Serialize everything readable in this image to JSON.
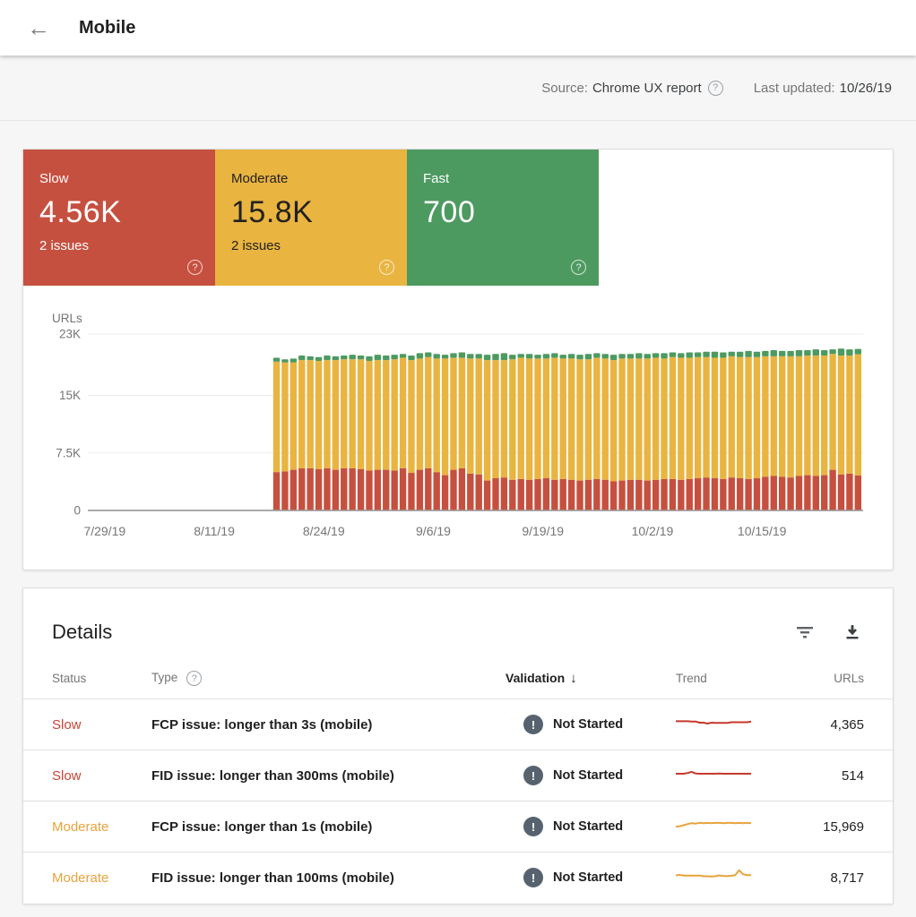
{
  "header": {
    "title": "Mobile"
  },
  "meta": {
    "source_label": "Source:",
    "source_value": "Chrome UX report",
    "updated_label": "Last updated:",
    "updated_value": "10/26/19"
  },
  "summary_cards": [
    {
      "label": "Slow",
      "value": "4.56K",
      "issues": "2 issues",
      "color": "#c6503f",
      "text_color": "#ffffff"
    },
    {
      "label": "Moderate",
      "value": "15.8K",
      "issues": "2 issues",
      "color": "#e9b440",
      "text_color": "#212121"
    },
    {
      "label": "Fast",
      "value": "700",
      "issues": "",
      "color": "#4d9a60",
      "text_color": "#ffffff"
    }
  ],
  "chart_data": {
    "type": "bar",
    "stacked": true,
    "ylabel": "URLs",
    "ylim": [
      0,
      23
    ],
    "y_unit": "K",
    "grid": true,
    "y_ticks": [
      {
        "value": 23,
        "label": "23K"
      },
      {
        "value": 15,
        "label": "15K"
      },
      {
        "value": 7.5,
        "label": "7.5K"
      },
      {
        "value": 0,
        "label": "0"
      }
    ],
    "x_ticks": [
      {
        "label": "7/29/19",
        "day": 2
      },
      {
        "label": "8/11/19",
        "day": 15
      },
      {
        "label": "8/24/19",
        "day": 28
      },
      {
        "label": "9/6/19",
        "day": 41
      },
      {
        "label": "9/19/19",
        "day": 54
      },
      {
        "label": "10/2/19",
        "day": 67
      },
      {
        "label": "10/15/19",
        "day": 80
      }
    ],
    "axis_days": 92,
    "bar_start_day": 22,
    "bar_start_date": "8/18/19",
    "bar_end_date": "10/26/19",
    "series": [
      {
        "name": "Slow",
        "color": "#c6503f",
        "values": [
          5.0,
          5.1,
          5.3,
          5.5,
          5.5,
          5.4,
          5.5,
          5.3,
          5.5,
          5.5,
          5.4,
          5.2,
          5.3,
          5.3,
          5.2,
          5.5,
          4.9,
          5.3,
          5.5,
          5.0,
          4.6,
          5.3,
          5.5,
          4.8,
          4.7,
          3.9,
          4.2,
          4.3,
          4.0,
          4.1,
          4.0,
          4.1,
          4.2,
          4.0,
          4.1,
          4.0,
          3.9,
          4.0,
          4.1,
          4.0,
          3.8,
          3.9,
          4.0,
          4.0,
          3.9,
          4.0,
          4.1,
          4.1,
          4.0,
          4.1,
          4.2,
          4.3,
          4.2,
          4.1,
          4.3,
          4.2,
          4.1,
          4.2,
          4.4,
          4.5,
          4.4,
          4.3,
          4.5,
          4.6,
          4.5,
          4.6,
          5.3,
          4.7,
          4.8,
          4.56
        ]
      },
      {
        "name": "Moderate",
        "color": "#e9b440",
        "values": [
          14.4,
          14.2,
          14.0,
          14.1,
          14.1,
          14.1,
          14.1,
          14.3,
          14.2,
          14.2,
          14.3,
          14.3,
          14.3,
          14.3,
          14.5,
          14.4,
          14.7,
          14.5,
          14.5,
          14.8,
          15.2,
          14.6,
          14.4,
          15.0,
          15.1,
          15.7,
          15.4,
          15.3,
          15.7,
          15.8,
          15.8,
          15.7,
          15.6,
          15.9,
          15.7,
          15.8,
          15.8,
          15.7,
          15.8,
          15.8,
          15.8,
          15.9,
          15.8,
          15.8,
          15.9,
          15.9,
          15.7,
          15.9,
          15.9,
          15.8,
          15.8,
          15.7,
          15.7,
          15.8,
          15.8,
          15.8,
          15.9,
          15.8,
          15.7,
          15.6,
          15.7,
          15.8,
          15.6,
          15.6,
          15.7,
          15.6,
          15.1,
          15.5,
          15.4,
          15.8
        ]
      },
      {
        "name": "Fast",
        "color": "#4d9a60",
        "values": [
          0.5,
          0.4,
          0.5,
          0.6,
          0.5,
          0.5,
          0.6,
          0.5,
          0.5,
          0.6,
          0.5,
          0.6,
          0.7,
          0.6,
          0.6,
          0.5,
          0.6,
          0.7,
          0.6,
          0.6,
          0.5,
          0.6,
          0.7,
          0.6,
          0.6,
          0.7,
          0.8,
          0.9,
          0.6,
          0.5,
          0.6,
          0.5,
          0.6,
          0.6,
          0.5,
          0.6,
          0.6,
          0.7,
          0.6,
          0.6,
          0.7,
          0.6,
          0.6,
          0.7,
          0.6,
          0.6,
          0.7,
          0.6,
          0.6,
          0.7,
          0.6,
          0.7,
          0.8,
          0.7,
          0.6,
          0.7,
          0.8,
          0.7,
          0.7,
          0.8,
          0.7,
          0.7,
          0.8,
          0.7,
          0.8,
          0.7,
          0.6,
          0.9,
          0.8,
          0.7
        ]
      }
    ]
  },
  "details": {
    "title": "Details",
    "columns": {
      "status": "Status",
      "type": "Type",
      "validation": "Validation",
      "trend": "Trend",
      "urls": "URLs"
    },
    "sort_arrow": "↓",
    "rows": [
      {
        "status": "Slow",
        "status_color": "#cb4437",
        "type": "FCP issue: longer than 3s (mobile)",
        "validation": "Not Started",
        "trend_color": "#c5392b",
        "trend": [
          5.6,
          5.6,
          5.6,
          5.6,
          5.5,
          5.5,
          5.0,
          5.0,
          4.6,
          5.0,
          4.9,
          4.9,
          4.9,
          4.9,
          5.2,
          5.2,
          5.2,
          5.2,
          5.2,
          5.5
        ],
        "urls": "4,365"
      },
      {
        "status": "Slow",
        "status_color": "#cb4437",
        "type": "FID issue: longer than 300ms (mobile)",
        "validation": "Not Started",
        "trend_color": "#c5392b",
        "trend": [
          5.0,
          5.0,
          5.0,
          5.3,
          5.8,
          5.1,
          5.0,
          5.0,
          5.0,
          5.0,
          5.0,
          5.1,
          5.0,
          5.0,
          5.0,
          5.0,
          5.0,
          5.0,
          5.0,
          5.0
        ],
        "urls": "514"
      },
      {
        "status": "Moderate",
        "status_color": "#e8a33c",
        "type": "FCP issue: longer than 1s (mobile)",
        "validation": "Not Started",
        "trend_color": "#e8a33c",
        "trend": [
          4.2,
          4.4,
          4.8,
          5.3,
          5.7,
          5.5,
          5.8,
          5.7,
          5.8,
          5.7,
          5.8,
          5.8,
          5.7,
          5.8,
          5.8,
          5.7,
          5.8,
          5.7,
          5.8,
          5.7
        ],
        "urls": "15,969"
      },
      {
        "status": "Moderate",
        "status_color": "#e8a33c",
        "type": "FID issue: longer than 100ms (mobile)",
        "validation": "Not Started",
        "trend_color": "#e8a33c",
        "trend": [
          5.2,
          5.4,
          5.1,
          5.1,
          5.1,
          5.1,
          5.1,
          4.8,
          4.8,
          4.7,
          4.8,
          5.2,
          4.9,
          4.9,
          5.0,
          5.3,
          7.4,
          5.6,
          5.3,
          5.3
        ],
        "urls": "8,717"
      }
    ]
  }
}
